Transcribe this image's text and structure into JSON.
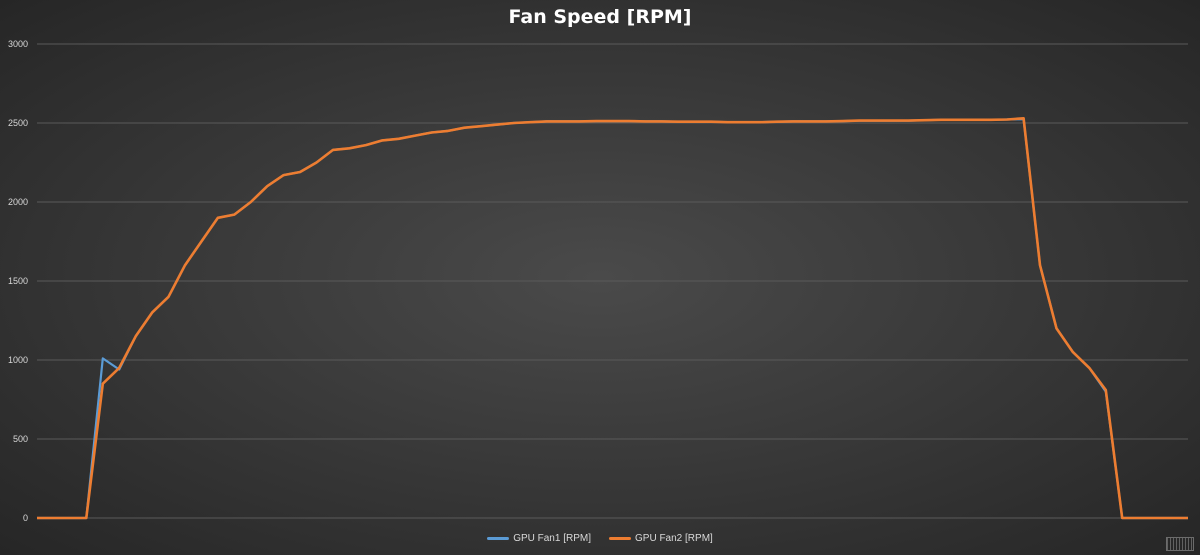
{
  "chart_data": {
    "type": "line",
    "title": "Fan Speed [RPM]",
    "ylim": [
      0,
      3000
    ],
    "yticks": [
      "0",
      "500",
      "1000",
      "1500",
      "2000",
      "2500",
      "3000"
    ],
    "grid": true,
    "legend_position": "bottom",
    "x": [
      0,
      1,
      2,
      3,
      4,
      5,
      6,
      7,
      8,
      9,
      10,
      11,
      12,
      13,
      14,
      15,
      16,
      17,
      18,
      19,
      20,
      21,
      22,
      23,
      24,
      25,
      26,
      27,
      28,
      29,
      30,
      31,
      32,
      33,
      34,
      35,
      36,
      37,
      38,
      39,
      40,
      41,
      42,
      43,
      44,
      45,
      46,
      47,
      48,
      49,
      50,
      51,
      52,
      53,
      54,
      55,
      56,
      57,
      58,
      59,
      60,
      61,
      62,
      63,
      64,
      65,
      66,
      67,
      68,
      69,
      70
    ],
    "series": [
      {
        "name": "GPU Fan1 [RPM]",
        "color": "#5b9bd5",
        "values": [
          0,
          0,
          0,
          0,
          1010,
          940,
          1150,
          1300,
          1400,
          1600,
          1750,
          1900,
          1920,
          2000,
          2100,
          2170,
          2190,
          2250,
          2330,
          2340,
          2360,
          2390,
          2400,
          2420,
          2440,
          2450,
          2470,
          2480,
          2490,
          2500,
          2505,
          2510,
          2510,
          2510,
          2512,
          2512,
          2512,
          2510,
          2510,
          2508,
          2508,
          2508,
          2505,
          2505,
          2505,
          2508,
          2510,
          2510,
          2510,
          2512,
          2515,
          2515,
          2515,
          2515,
          2518,
          2520,
          2520,
          2520,
          2520,
          2522,
          2525,
          1600,
          1200,
          1050,
          950,
          800,
          0,
          0,
          0,
          0,
          0
        ]
      },
      {
        "name": "GPU Fan2 [RPM]",
        "color": "#ed7d31",
        "values": [
          0,
          0,
          0,
          0,
          850,
          950,
          1150,
          1300,
          1400,
          1600,
          1750,
          1900,
          1920,
          2000,
          2100,
          2170,
          2190,
          2250,
          2330,
          2340,
          2360,
          2390,
          2400,
          2420,
          2440,
          2450,
          2470,
          2480,
          2490,
          2500,
          2505,
          2510,
          2510,
          2510,
          2512,
          2512,
          2512,
          2510,
          2510,
          2508,
          2508,
          2508,
          2505,
          2505,
          2505,
          2508,
          2510,
          2510,
          2510,
          2512,
          2515,
          2515,
          2515,
          2515,
          2518,
          2520,
          2520,
          2520,
          2520,
          2522,
          2530,
          1600,
          1200,
          1050,
          950,
          810,
          0,
          0,
          0,
          0,
          0
        ]
      }
    ]
  }
}
